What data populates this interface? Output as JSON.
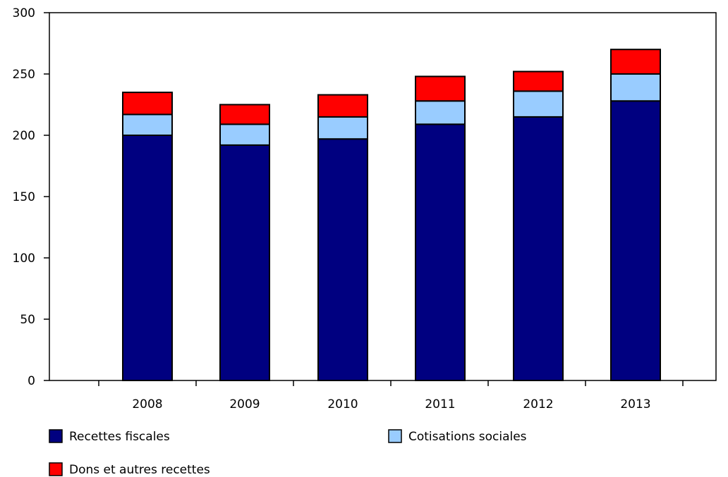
{
  "chart_data": {
    "type": "bar",
    "stacked": true,
    "categories": [
      "2008",
      "2009",
      "2010",
      "2011",
      "2012",
      "2013"
    ],
    "series": [
      {
        "name": "Recettes fiscales",
        "color": "#000080",
        "values": [
          200,
          192,
          197,
          209,
          215,
          228
        ]
      },
      {
        "name": "Cotisations sociales",
        "color": "#99ccff",
        "values": [
          17,
          17,
          18,
          19,
          21,
          22
        ]
      },
      {
        "name": "Dons et autres recettes",
        "color": "#ff0000",
        "values": [
          18,
          16,
          18,
          20,
          16,
          20
        ]
      }
    ],
    "yticks": [
      0,
      50,
      100,
      150,
      200,
      250,
      300
    ],
    "ylim": [
      0,
      300
    ],
    "grid": false,
    "legend_position": "bottom"
  }
}
